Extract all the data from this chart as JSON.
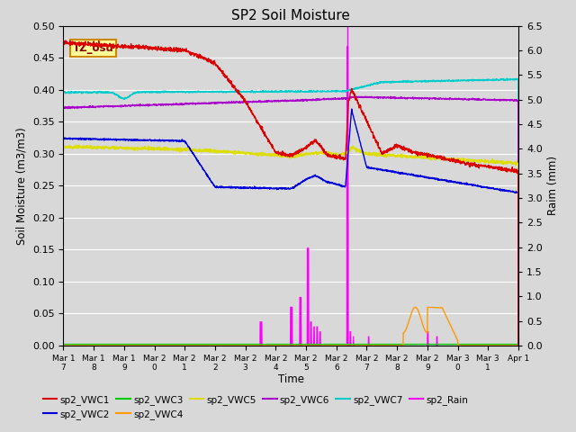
{
  "title": "SP2 Soil Moisture",
  "xlabel": "Time",
  "ylabel_left": "Soil Moisture (m3/m3)",
  "ylabel_right": "Raim (mm)",
  "ylim_left": [
    0.0,
    0.5
  ],
  "ylim_right": [
    0.0,
    6.5
  ],
  "yticks_left": [
    0.0,
    0.05,
    0.1,
    0.15,
    0.2,
    0.25,
    0.3,
    0.35,
    0.4,
    0.45,
    0.5
  ],
  "yticks_right": [
    0.0,
    0.5,
    1.0,
    1.5,
    2.0,
    2.5,
    3.0,
    3.5,
    4.0,
    4.5,
    5.0,
    5.5,
    6.0,
    6.5
  ],
  "background_color": "#d8d8d8",
  "axes_facecolor": "#d8d8d8",
  "grid_color": "#ffffff",
  "colors": {
    "VWC1": "#dd0000",
    "VWC2": "#0000dd",
    "VWC3": "#00cc00",
    "VWC4": "#ff9900",
    "VWC5": "#dddd00",
    "VWC6": "#aa00cc",
    "VWC7": "#00cccc",
    "Rain": "#ff00ff"
  },
  "tz_box_text": "TZ_osu",
  "tz_box_color": "#ffff99",
  "tz_box_edgecolor": "#cc8800",
  "x_tick_labels": [
    "Mar 17",
    "Mar 18",
    "Mar 19",
    "Mar 20",
    "Mar 21",
    "Mar 22",
    "Mar 23",
    "Mar 24",
    "Mar 25",
    "Mar 26",
    "Mar 27",
    "Mar 28",
    "Mar 29",
    "Mar 30",
    "Mar 31",
    "Apr 1"
  ],
  "x_tick_short": [
    "Mar 1\\n7",
    "Mar 1\\n8",
    "Mar 1\\n9",
    "Mar 2\\n0",
    "Mar 2\\n1",
    "Mar 2\\n2",
    "Mar 2\\n3",
    "Mar 2\\n4",
    "Mar 2\\n5",
    "Mar 2\\n6",
    "Mar 2\\n7",
    "Mar 2\\n8",
    "Mar 2\\n9",
    "Mar 3\\n0",
    "Mar 3\\n1",
    "Apr 1"
  ]
}
